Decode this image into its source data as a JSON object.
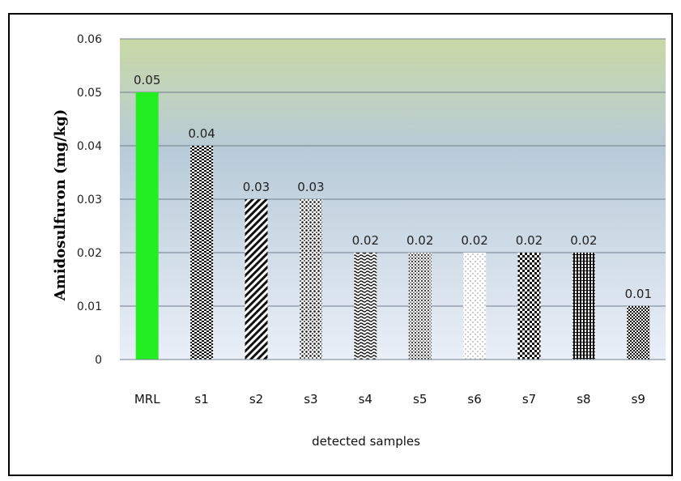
{
  "chart_data": {
    "type": "bar",
    "title": "",
    "xlabel": "detected samples",
    "ylabel": "Amidosulfuron (mg/kg)",
    "ylim": [
      0,
      0.06
    ],
    "yticks": [
      0,
      0.01,
      0.02,
      0.03,
      0.04,
      0.05,
      0.06
    ],
    "ytick_labels": [
      "0",
      "0.01",
      "0.02",
      "0.03",
      "0.04",
      "0.05",
      "0.06"
    ],
    "categories": [
      "MRL",
      "s1",
      "s2",
      "s3",
      "s4",
      "s5",
      "s6",
      "s7",
      "s8",
      "s9"
    ],
    "values": [
      0.05,
      0.04,
      0.03,
      0.03,
      0.02,
      0.02,
      0.02,
      0.02,
      0.02,
      0.01
    ],
    "data_labels": [
      "0.05",
      "0.04",
      "0.03",
      "0.03",
      "0.02",
      "0.02",
      "0.02",
      "0.02",
      "0.02",
      "0.01"
    ],
    "grid": true,
    "legend": "none",
    "colors": {
      "mrl_bar": "#22ee22",
      "sample_bars": "#1a1a1a",
      "plot_bg_top": "#c8d9a6",
      "plot_bg_bottom": "#e9eef8",
      "gridline": "#6f7f8f"
    }
  }
}
